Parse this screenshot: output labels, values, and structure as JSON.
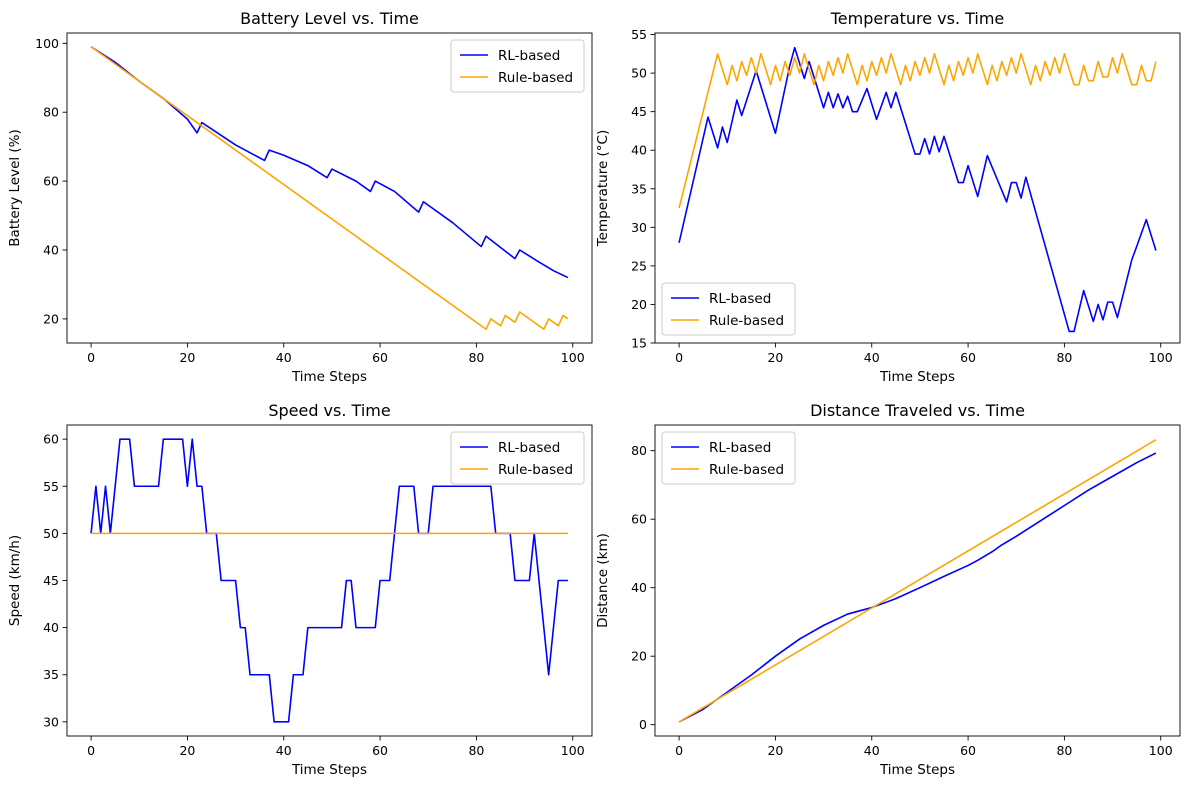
{
  "colors": {
    "rl": "#0000ff",
    "rule": "#ffa500"
  },
  "chart_data": [
    {
      "type": "line",
      "title": "Battery Level vs. Time",
      "xlabel": "Time Steps",
      "ylabel": "Battery Level (%)",
      "xlim": [
        -5,
        104
      ],
      "ylim": [
        13,
        103
      ],
      "xticks": [
        0,
        20,
        40,
        60,
        80,
        100
      ],
      "yticks": [
        20,
        40,
        60,
        80,
        100
      ],
      "legend": "top-right",
      "series": [
        {
          "name": "RL-based",
          "color": "#0000ff",
          "points": [
            [
              0,
              99
            ],
            [
              5,
              94.5
            ],
            [
              10,
              89
            ],
            [
              15,
              84
            ],
            [
              20,
              78
            ],
            [
              22,
              74
            ],
            [
              23,
              77
            ],
            [
              30,
              70.5
            ],
            [
              36,
              66
            ],
            [
              37,
              69
            ],
            [
              40,
              67.5
            ],
            [
              45,
              64.5
            ],
            [
              49,
              61
            ],
            [
              50,
              63.5
            ],
            [
              55,
              60
            ],
            [
              58,
              57
            ],
            [
              59,
              60
            ],
            [
              63,
              57
            ],
            [
              68,
              51
            ],
            [
              69,
              54
            ],
            [
              75,
              48
            ],
            [
              81,
              41
            ],
            [
              82,
              44
            ],
            [
              88,
              37.5
            ],
            [
              89,
              40
            ],
            [
              93,
              36.5
            ],
            [
              96,
              34
            ],
            [
              99,
              32
            ]
          ]
        },
        {
          "name": "Rule-based",
          "color": "#ffa500",
          "points": [
            [
              0,
              99
            ],
            [
              82,
              17
            ],
            [
              83,
              20
            ],
            [
              85,
              18
            ],
            [
              86,
              21
            ],
            [
              88,
              19
            ],
            [
              89,
              22
            ],
            [
              94,
              17
            ],
            [
              95,
              20
            ],
            [
              97,
              18
            ],
            [
              98,
              21
            ],
            [
              99,
              20
            ]
          ]
        }
      ]
    },
    {
      "type": "line",
      "title": "Temperature vs. Time",
      "xlabel": "Time Steps",
      "ylabel": "Temperature (°C)",
      "xlim": [
        -5,
        104
      ],
      "ylim": [
        15,
        55.2
      ],
      "xticks": [
        0,
        20,
        40,
        60,
        80,
        100
      ],
      "yticks": [
        15,
        20,
        25,
        30,
        35,
        40,
        45,
        50,
        55
      ],
      "legend": "bottom-left",
      "series": [
        {
          "name": "RL-based",
          "color": "#0000ff",
          "points": [
            [
              0,
              28
            ],
            [
              6,
              44.3
            ],
            [
              8,
              40.3
            ],
            [
              9,
              43
            ],
            [
              10,
              41
            ],
            [
              12,
              46.5
            ],
            [
              13,
              44.5
            ],
            [
              16,
              50.3
            ],
            [
              20,
              42.2
            ],
            [
              23,
              51
            ],
            [
              24,
              53.3
            ],
            [
              26,
              49.3
            ],
            [
              27,
              51.5
            ],
            [
              30,
              45.5
            ],
            [
              31,
              47.5
            ],
            [
              32,
              45.5
            ],
            [
              33,
              47.3
            ],
            [
              34,
              45.5
            ],
            [
              35,
              47
            ],
            [
              36,
              45
            ],
            [
              37,
              45
            ],
            [
              39,
              48
            ],
            [
              41,
              44
            ],
            [
              43,
              47.5
            ],
            [
              44,
              45.5
            ],
            [
              45,
              47.5
            ],
            [
              49,
              39.5
            ],
            [
              50,
              39.5
            ],
            [
              51,
              41.5
            ],
            [
              52,
              39.5
            ],
            [
              53,
              41.8
            ],
            [
              54,
              39.8
            ],
            [
              55,
              41.8
            ],
            [
              58,
              35.8
            ],
            [
              59,
              35.8
            ],
            [
              60,
              38
            ],
            [
              62,
              34
            ],
            [
              64,
              39.3
            ],
            [
              68,
              33.3
            ],
            [
              69,
              35.8
            ],
            [
              70,
              35.8
            ],
            [
              71,
              33.8
            ],
            [
              72,
              36.5
            ],
            [
              81,
              16.5
            ],
            [
              82,
              16.5
            ],
            [
              84,
              21.8
            ],
            [
              86,
              17.8
            ],
            [
              87,
              20
            ],
            [
              88,
              18
            ],
            [
              89,
              20.3
            ],
            [
              90,
              20.3
            ],
            [
              91,
              18.3
            ],
            [
              94,
              25.8
            ],
            [
              95,
              27.5
            ],
            [
              97,
              31
            ],
            [
              99,
              27
            ]
          ]
        },
        {
          "name": "Rule-based",
          "color": "#ffa500",
          "points": [
            [
              0,
              32.5
            ],
            [
              8,
              52.5
            ],
            [
              10,
              48.5
            ],
            [
              11,
              51
            ],
            [
              12,
              49
            ],
            [
              13,
              51.5
            ],
            [
              14,
              49.7
            ],
            [
              15,
              52
            ],
            [
              16,
              50
            ],
            [
              17,
              52.5
            ],
            [
              19,
              48.5
            ],
            [
              20,
              51
            ],
            [
              21,
              49
            ],
            [
              22,
              51.5
            ],
            [
              23,
              49.7
            ],
            [
              24,
              52
            ],
            [
              25,
              50
            ],
            [
              26,
              52.5
            ],
            [
              28,
              48.5
            ],
            [
              29,
              51
            ],
            [
              30,
              49
            ],
            [
              31,
              51.5
            ],
            [
              32,
              49.7
            ],
            [
              33,
              52
            ],
            [
              34,
              50
            ],
            [
              35,
              52.5
            ],
            [
              37,
              48.5
            ],
            [
              38,
              51
            ],
            [
              39,
              49
            ],
            [
              40,
              51.5
            ],
            [
              41,
              49.7
            ],
            [
              42,
              52
            ],
            [
              43,
              50
            ],
            [
              44,
              52.5
            ],
            [
              46,
              48.5
            ],
            [
              47,
              51
            ],
            [
              48,
              49
            ],
            [
              49,
              51.5
            ],
            [
              50,
              49.7
            ],
            [
              51,
              52
            ],
            [
              52,
              50
            ],
            [
              53,
              52.5
            ],
            [
              55,
              48.5
            ],
            [
              56,
              51
            ],
            [
              57,
              49
            ],
            [
              58,
              51.5
            ],
            [
              59,
              49.7
            ],
            [
              60,
              52
            ],
            [
              61,
              50
            ],
            [
              62,
              52.5
            ],
            [
              64,
              48.5
            ],
            [
              65,
              51
            ],
            [
              66,
              49
            ],
            [
              67,
              51.5
            ],
            [
              68,
              49.7
            ],
            [
              69,
              52
            ],
            [
              70,
              50
            ],
            [
              71,
              52.5
            ],
            [
              73,
              48.5
            ],
            [
              74,
              51
            ],
            [
              75,
              49
            ],
            [
              76,
              51.5
            ],
            [
              77,
              49.7
            ],
            [
              78,
              52
            ],
            [
              79,
              50
            ],
            [
              80,
              52.5
            ],
            [
              82,
              48.5
            ],
            [
              83,
              48.5
            ],
            [
              84,
              51
            ],
            [
              85,
              49
            ],
            [
              86,
              49
            ],
            [
              87,
              51.5
            ],
            [
              88,
              49.5
            ],
            [
              89,
              49.5
            ],
            [
              90,
              52
            ],
            [
              91,
              50
            ],
            [
              92,
              52.5
            ],
            [
              94,
              48.5
            ],
            [
              95,
              48.5
            ],
            [
              96,
              51
            ],
            [
              97,
              49
            ],
            [
              98,
              49
            ],
            [
              99,
              51.5
            ]
          ]
        }
      ]
    },
    {
      "type": "line",
      "title": "Speed vs. Time",
      "xlabel": "Time Steps",
      "ylabel": "Speed (km/h)",
      "xlim": [
        -5,
        104
      ],
      "ylim": [
        28.5,
        61.5
      ],
      "xticks": [
        0,
        20,
        40,
        60,
        80,
        100
      ],
      "yticks": [
        30,
        35,
        40,
        45,
        50,
        55,
        60
      ],
      "legend": "top-right",
      "series": [
        {
          "name": "RL-based",
          "color": "#0000ff",
          "points": [
            [
              0,
              50
            ],
            [
              1,
              55
            ],
            [
              2,
              50
            ],
            [
              3,
              55
            ],
            [
              4,
              50
            ],
            [
              5,
              55
            ],
            [
              6,
              60
            ],
            [
              8,
              60
            ],
            [
              9,
              55
            ],
            [
              14,
              55
            ],
            [
              15,
              60
            ],
            [
              19,
              60
            ],
            [
              20,
              55
            ],
            [
              21,
              60
            ],
            [
              22,
              55
            ],
            [
              23,
              55
            ],
            [
              24,
              50
            ],
            [
              26,
              50
            ],
            [
              27,
              45
            ],
            [
              30,
              45
            ],
            [
              31,
              40
            ],
            [
              32,
              40
            ],
            [
              33,
              35
            ],
            [
              37,
              35
            ],
            [
              38,
              30
            ],
            [
              41,
              30
            ],
            [
              42,
              35
            ],
            [
              44,
              35
            ],
            [
              45,
              40
            ],
            [
              52,
              40
            ],
            [
              53,
              45
            ],
            [
              54,
              45
            ],
            [
              55,
              40
            ],
            [
              59,
              40
            ],
            [
              60,
              45
            ],
            [
              62,
              45
            ],
            [
              63,
              50
            ],
            [
              64,
              55
            ],
            [
              67,
              55
            ],
            [
              68,
              50
            ],
            [
              70,
              50
            ],
            [
              71,
              55
            ],
            [
              83,
              55
            ],
            [
              84,
              50
            ],
            [
              87,
              50
            ],
            [
              88,
              45
            ],
            [
              91,
              45
            ],
            [
              92,
              50
            ],
            [
              95,
              35
            ],
            [
              97,
              45
            ],
            [
              99,
              45
            ]
          ]
        },
        {
          "name": "Rule-based",
          "color": "#ffa500",
          "points": [
            [
              0,
              50
            ],
            [
              99,
              50
            ]
          ]
        }
      ]
    },
    {
      "type": "line",
      "title": "Distance Traveled vs. Time",
      "xlabel": "Time Steps",
      "ylabel": "Distance (km)",
      "xlim": [
        -5,
        104
      ],
      "ylim": [
        -3.3,
        87.5
      ],
      "xticks": [
        0,
        20,
        40,
        60,
        80,
        100
      ],
      "yticks": [
        0,
        20,
        40,
        60,
        80
      ],
      "legend": "top-left",
      "series": [
        {
          "name": "RL-based",
          "color": "#0000ff",
          "points": [
            [
              0,
              0.8
            ],
            [
              5,
              4.5
            ],
            [
              10,
              9.5
            ],
            [
              15,
              14.5
            ],
            [
              20,
              20
            ],
            [
              25,
              25
            ],
            [
              30,
              29
            ],
            [
              35,
              32.3
            ],
            [
              40,
              34.2
            ],
            [
              45,
              36.8
            ],
            [
              50,
              40
            ],
            [
              55,
              43.3
            ],
            [
              60,
              46.5
            ],
            [
              62,
              48
            ],
            [
              65,
              50.5
            ],
            [
              67,
              52.5
            ],
            [
              70,
              55
            ],
            [
              75,
              59.5
            ],
            [
              80,
              64
            ],
            [
              85,
              68.5
            ],
            [
              90,
              72.5
            ],
            [
              95,
              76.5
            ],
            [
              99,
              79.3
            ]
          ]
        },
        {
          "name": "Rule-based",
          "color": "#ffa500",
          "points": [
            [
              0,
              0.8
            ],
            [
              99,
              83.2
            ]
          ]
        }
      ]
    }
  ]
}
